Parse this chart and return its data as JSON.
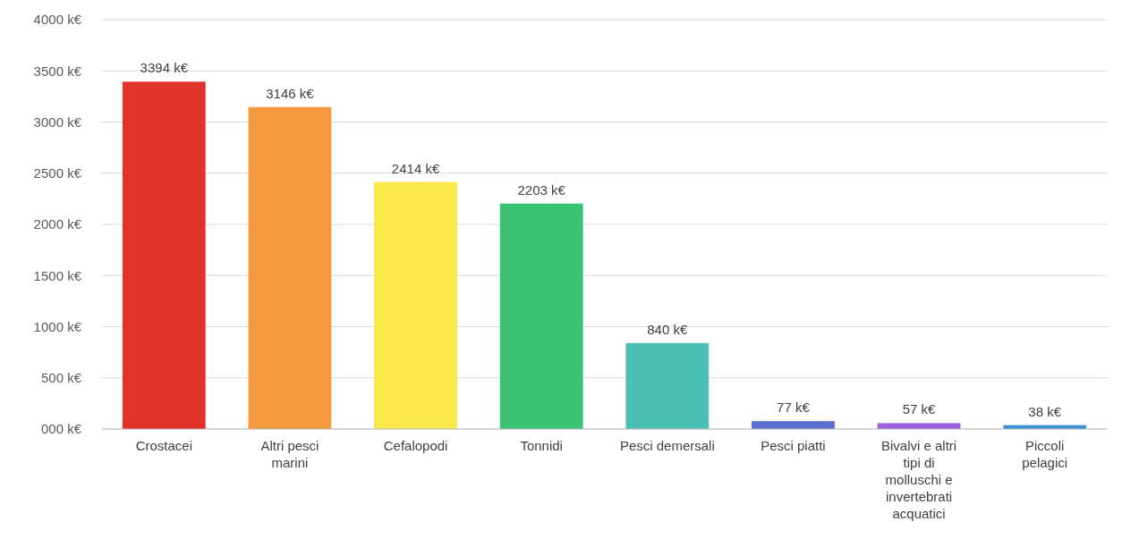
{
  "chart_data": {
    "type": "bar",
    "categories": [
      "Crostacei",
      "Altri pesci marini",
      "Cefalopodi",
      "Tonnidi",
      "Pesci demersali",
      "Pesci piatti",
      "Bivalvi e altri tipi di molluschi e invertebrati acquatici",
      "Piccoli pelagici"
    ],
    "values": [
      3394,
      3146,
      2414,
      2203,
      840,
      77,
      57,
      38
    ],
    "colors": [
      "#e2322c",
      "#f59b3e",
      "#fbe84b",
      "#39c274",
      "#4cbfb5",
      "#5a6fd0",
      "#9a60e0",
      "#3c90d6"
    ],
    "value_labels": [
      "3394 k€",
      "3146 k€",
      "2414 k€",
      "2203 k€",
      "840 k€",
      "77 k€",
      "57 k€",
      "38 k€"
    ],
    "ylim": [
      0,
      4000
    ],
    "yticks": [
      {
        "value": 0,
        "label": "000 k€"
      },
      {
        "value": 500,
        "label": "500 k€"
      },
      {
        "value": 1000,
        "label": "1000 k€"
      },
      {
        "value": 1500,
        "label": "1500 k€"
      },
      {
        "value": 2000,
        "label": "2000 k€"
      },
      {
        "value": 2500,
        "label": "2500 k€"
      },
      {
        "value": 3000,
        "label": "3000 k€"
      },
      {
        "value": 3500,
        "label": "3500 k€"
      },
      {
        "value": 4000,
        "label": "4000 k€"
      }
    ],
    "grid": "y"
  }
}
